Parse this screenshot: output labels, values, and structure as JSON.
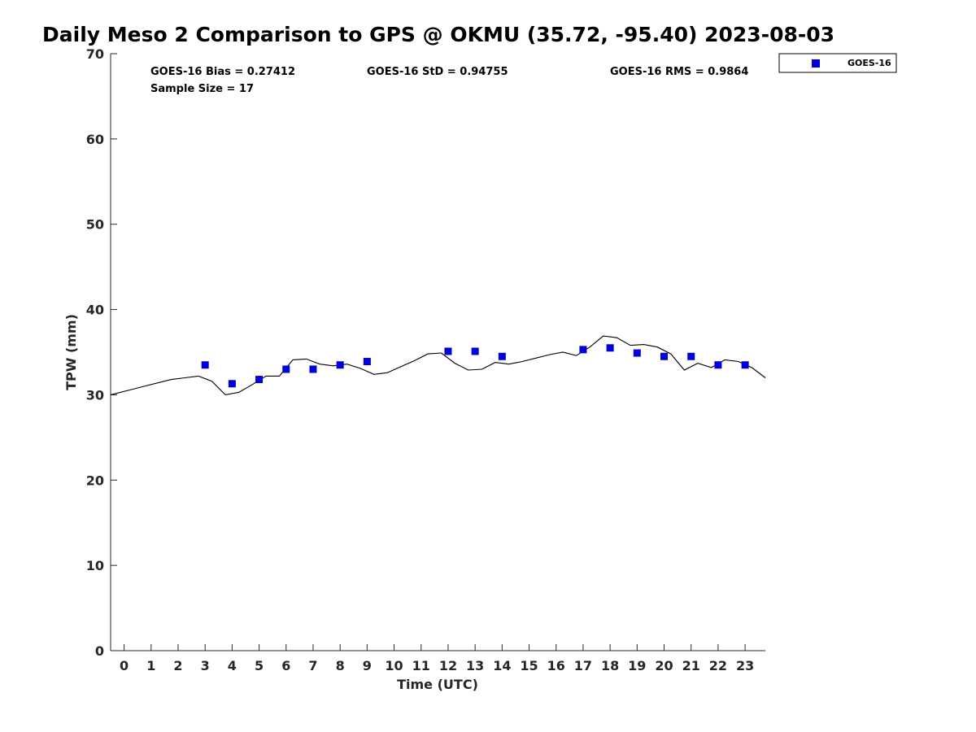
{
  "chart_data": {
    "type": "scatter",
    "title": "Daily Meso 2 Comparison to GPS @ OKMU (35.72, -95.40) 2023-08-03",
    "xlabel": "Time (UTC)",
    "ylabel": "TPW (mm)",
    "xlim": [
      -0.5,
      23.75
    ],
    "ylim": [
      0,
      70
    ],
    "x_ticks": [
      0,
      1,
      2,
      3,
      4,
      5,
      6,
      7,
      8,
      9,
      10,
      11,
      12,
      13,
      14,
      15,
      16,
      17,
      18,
      19,
      20,
      21,
      22,
      23
    ],
    "y_ticks": [
      0,
      10,
      20,
      30,
      40,
      50,
      60,
      70
    ],
    "grid": false,
    "legend_position": "outside-top-right",
    "stats": {
      "bias": "GOES-16 Bias = 0.27412",
      "std": "GOES-16 StD = 0.94755",
      "rms": "GOES-16 RMS = 0.9864",
      "sample_size": "Sample Size = 17"
    },
    "series": [
      {
        "name": "GOES-16",
        "kind": "markers",
        "marker": "square",
        "color": "#0000dd",
        "points": [
          [
            3,
            33.5
          ],
          [
            4,
            31.3
          ],
          [
            5,
            31.8
          ],
          [
            6,
            33.0
          ],
          [
            7,
            33.0
          ],
          [
            8,
            33.5
          ],
          [
            9,
            33.9
          ],
          [
            12,
            35.1
          ],
          [
            13,
            35.1
          ],
          [
            14,
            34.5
          ],
          [
            17,
            35.3
          ],
          [
            18,
            35.5
          ],
          [
            19,
            34.9
          ],
          [
            20,
            34.5
          ],
          [
            21,
            34.5
          ],
          [
            22,
            33.5
          ],
          [
            23,
            33.5
          ]
        ]
      },
      {
        "kind": "line",
        "color": "#000000",
        "points": [
          [
            -0.5,
            30.0
          ],
          [
            -0.25,
            30.2
          ],
          [
            0.25,
            30.6
          ],
          [
            0.75,
            31.0
          ],
          [
            1.25,
            31.4
          ],
          [
            1.75,
            31.8
          ],
          [
            2.25,
            32.0
          ],
          [
            2.75,
            32.2
          ],
          [
            3.25,
            31.6
          ],
          [
            3.75,
            30.0
          ],
          [
            4.25,
            30.3
          ],
          [
            4.75,
            31.2
          ],
          [
            5.25,
            32.2
          ],
          [
            5.75,
            32.2
          ],
          [
            6.25,
            34.1
          ],
          [
            6.75,
            34.2
          ],
          [
            7.25,
            33.6
          ],
          [
            7.75,
            33.4
          ],
          [
            8.25,
            33.6
          ],
          [
            8.75,
            33.1
          ],
          [
            9.25,
            32.4
          ],
          [
            9.75,
            32.6
          ],
          [
            10.25,
            33.3
          ],
          [
            10.75,
            34.0
          ],
          [
            11.25,
            34.8
          ],
          [
            11.75,
            34.9
          ],
          [
            12.25,
            33.7
          ],
          [
            12.75,
            32.9
          ],
          [
            13.25,
            33.0
          ],
          [
            13.75,
            33.8
          ],
          [
            14.25,
            33.6
          ],
          [
            14.75,
            33.9
          ],
          [
            15.25,
            34.3
          ],
          [
            15.75,
            34.7
          ],
          [
            16.25,
            35.0
          ],
          [
            16.75,
            34.6
          ],
          [
            17.25,
            35.6
          ],
          [
            17.75,
            36.9
          ],
          [
            18.25,
            36.7
          ],
          [
            18.75,
            35.8
          ],
          [
            19.25,
            35.9
          ],
          [
            19.75,
            35.6
          ],
          [
            20.25,
            34.8
          ],
          [
            20.75,
            32.9
          ],
          [
            21.25,
            33.7
          ],
          [
            21.75,
            33.2
          ],
          [
            22.25,
            34.1
          ],
          [
            22.75,
            33.9
          ],
          [
            23.25,
            33.2
          ],
          [
            23.75,
            32.0
          ]
        ]
      }
    ]
  }
}
